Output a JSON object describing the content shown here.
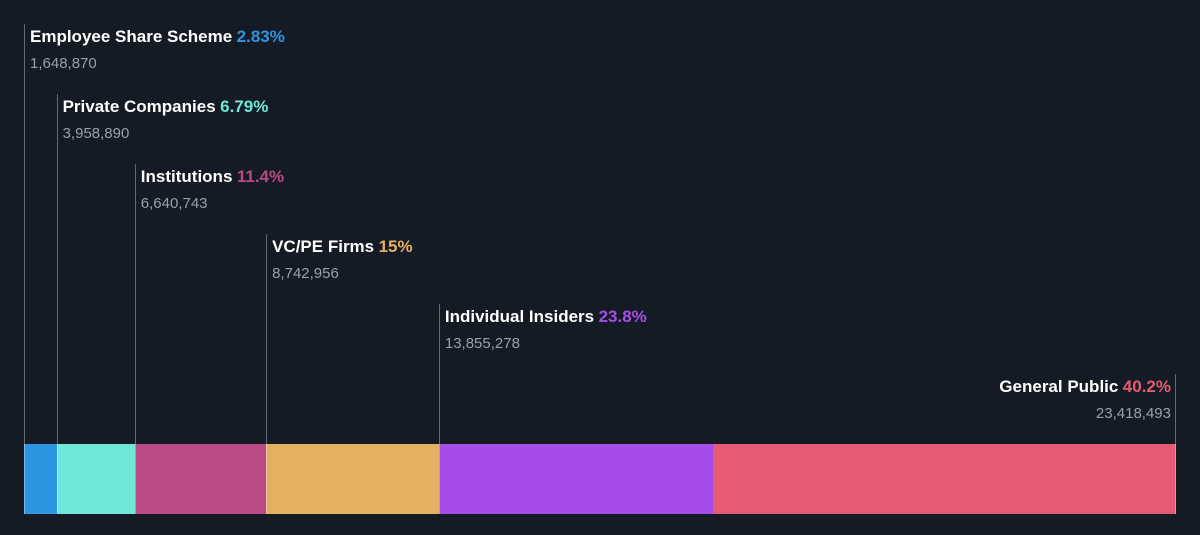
{
  "chart_data": {
    "type": "bar",
    "stacked": true,
    "orientation": "horizontal",
    "categories": [
      "Employee Share Scheme",
      "Private Companies",
      "Institutions",
      "VC/PE Firms",
      "Individual Insiders",
      "General Public"
    ],
    "percent_labels": [
      "2.83%",
      "6.79%",
      "11.4%",
      "15%",
      "23.8%",
      "40.2%"
    ],
    "values": [
      2.83,
      6.79,
      11.4,
      15,
      23.8,
      40.2
    ],
    "shares": [
      "1,648,870",
      "3,958,890",
      "6,640,743",
      "8,742,956",
      "13,855,278",
      "23,418,493"
    ],
    "colors": [
      "#2d96e2",
      "#6ee7d6",
      "#b94a86",
      "#e4b062",
      "#a44de8",
      "#e65b74"
    ],
    "title": "",
    "xlabel": "",
    "ylabel": "",
    "grid": false,
    "legend": "none"
  }
}
